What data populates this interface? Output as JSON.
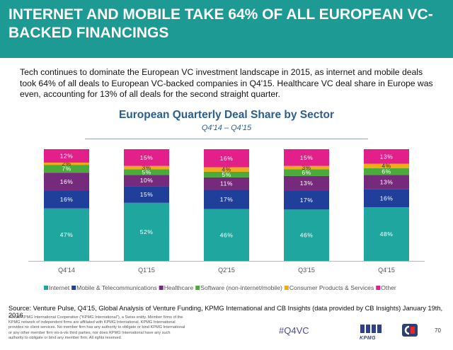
{
  "header": {
    "title": "INTERNET AND MOBILE TAKE 64% OF ALL EUROPEAN VC-BACKED FINANCINGS"
  },
  "intro": "Tech continues to dominate the European VC investment landscape in 2015, as internet and mobile deals took 64% of all deals to European VC-backed companies in Q4'15. Healthcare VC deal share in Europe was even, accounting for 13% of all deals for the second straight quarter.",
  "chart_data": {
    "type": "bar",
    "stacked": true,
    "percent_stacked": true,
    "title": "European Quarterly Deal Share by Sector",
    "subtitle": "Q4'14 – Q4'15",
    "categories": [
      "Q4'14",
      "Q1'15",
      "Q2'15",
      "Q3'15",
      "Q4'15"
    ],
    "legend_position": "bottom",
    "grid": false,
    "series": [
      {
        "name": "Internet",
        "color": "#1fa79f",
        "values": [
          47,
          52,
          46,
          46,
          48
        ]
      },
      {
        "name": "Mobile & Telecommunications",
        "color": "#1f3f9a",
        "values": [
          16,
          15,
          17,
          17,
          16
        ]
      },
      {
        "name": "Healthcare",
        "color": "#762a7c",
        "values": [
          16,
          10,
          11,
          13,
          13
        ]
      },
      {
        "name": "Software (non-internet/mobile)",
        "color": "#4aaa3a",
        "values": [
          7,
          5,
          5,
          6,
          6
        ]
      },
      {
        "name": "Consumer Products & Services",
        "color": "#f0ab1b",
        "values": [
          2,
          3,
          4,
          3,
          4
        ]
      },
      {
        "name": "Other",
        "color": "#e31f8a",
        "values": [
          12,
          15,
          16,
          15,
          13
        ]
      }
    ]
  },
  "source": "Source: Venture Pulse, Q4'15, Global Analysis of Venture Funding, KPMG International and CB Insights (data provided by CB Insights) January 19th, 2016",
  "legal": "©2016 KPMG International Cooperative (\"KPMG International\"), a Swiss entity. Member firms of the KPMG network of independent firms are affiliated with KPMG International. KPMG International provides no client services. No member firm has any authority to obligate or bind KPMG International or any other member firm vis-à-vis third parties, nor does KPMG International have any such authority to obligate or bind any member firm. All rights reserved.",
  "footer": {
    "hashtag": "#Q4VC",
    "logo_text": "KPMG",
    "page_number": "70"
  },
  "icons": {
    "logo": "kpmg-logo-icon",
    "badge": "cb-insights-logo-icon"
  }
}
